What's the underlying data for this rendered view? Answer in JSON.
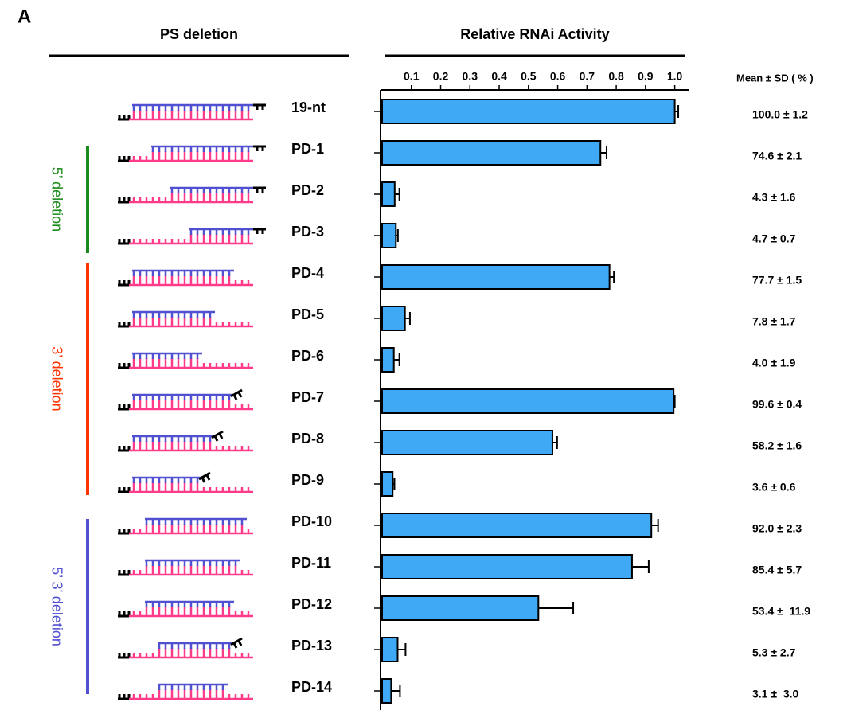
{
  "chart_data": {
    "type": "bar",
    "orientation": "horizontal",
    "panel_label": "A",
    "left_title": "PS deletion",
    "title": "Relative RNAi Activity",
    "value_label_title": "Mean ± SD ( % )",
    "categories": [
      "19-nt",
      "PD-1",
      "PD-2",
      "PD-3",
      "PD-4",
      "PD-5",
      "PD-6",
      "PD-7",
      "PD-8",
      "PD-9",
      "PD-10",
      "PD-11",
      "PD-12",
      "PD-13",
      "PD-14"
    ],
    "values": [
      1.0,
      0.746,
      0.043,
      0.047,
      0.777,
      0.078,
      0.04,
      0.996,
      0.582,
      0.036,
      0.92,
      0.854,
      0.534,
      0.053,
      0.031
    ],
    "errors": [
      0.012,
      0.021,
      0.016,
      0.007,
      0.015,
      0.017,
      0.019,
      0.004,
      0.016,
      0.006,
      0.023,
      0.057,
      0.119,
      0.027,
      0.03
    ],
    "value_labels": [
      "100.0 ± 1.2",
      "74.6 ± 2.1",
      "4.3 ± 1.6",
      "4.7 ± 0.7",
      "77.7 ± 1.5",
      "7.8 ± 1.7",
      "4.0 ± 1.9",
      "99.6 ± 0.4",
      "58.2 ± 1.6",
      "3.6 ± 0.6",
      "92.0 ± 2.3",
      "85.4 ± 5.7",
      "53.4 ±  11.9",
      "5.3 ± 2.7",
      "3.1 ±  3.0"
    ],
    "color": "#3fa9f5",
    "xlim": [
      0,
      1.05
    ],
    "xticks": [
      0.1,
      0.2,
      0.3,
      0.4,
      0.5,
      0.6,
      0.7,
      0.8,
      0.9,
      {
        "value": 1.0,
        "label": "1.0"
      }
    ],
    "groups": [
      {
        "label": "5’ deletion",
        "color": "#1a8a1a"
      },
      {
        "label": "3’ deletion",
        "color": "#ff3300"
      },
      {
        "label": "5’ 3’ deletion",
        "color": "#5050d0"
      }
    ]
  }
}
